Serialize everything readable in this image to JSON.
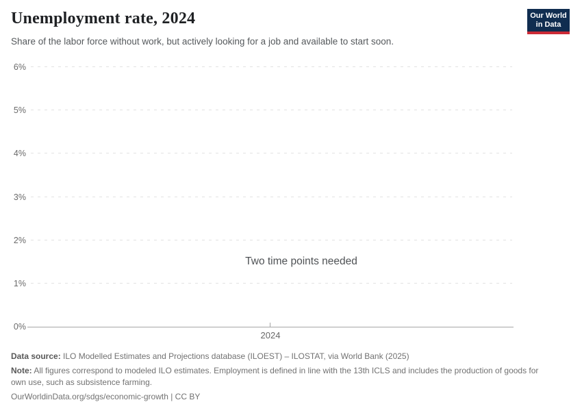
{
  "header": {
    "title": "Unemployment rate, 2024",
    "subtitle": "Share of the labor force without work, but actively looking for a job and available to start soon.",
    "logo": {
      "line1": "Our World",
      "line2": "in Data",
      "bg_color": "#102d50",
      "bar_color": "#cc2a36"
    }
  },
  "chart_data": {
    "type": "line",
    "title": "Unemployment rate, 2024",
    "series": [],
    "x": [],
    "message": "Two time points needed",
    "xlabel": "",
    "ylabel": "",
    "ylim": [
      0,
      6
    ],
    "yticks": [
      0,
      1,
      2,
      3,
      4,
      5,
      6
    ],
    "ytick_labels": [
      "0%",
      "1%",
      "2%",
      "3%",
      "4%",
      "5%",
      "6%"
    ],
    "xticks": [
      2024
    ],
    "xtick_labels": [
      "2024"
    ],
    "grid": "horizontal-dashed",
    "legend": "none",
    "colors": {
      "gridline": "#e2e2e2",
      "axis": "#a5a5a5",
      "tick_label": "#6b6b6b",
      "message_text": "#4f5255"
    }
  },
  "footer": {
    "data_source_label": "Data source:",
    "data_source_text": " ILO Modelled Estimates and Projections database (ILOEST) – ILOSTAT, via World Bank (2025)",
    "note_label": "Note:",
    "note_text": " All figures correspond to modeled ILO estimates. Employment is defined in line with the 13th ICLS and includes the production of goods for own use, such as subsistence farming.",
    "url": "OurWorldinData.org/sdgs/economic-growth",
    "separator": " | ",
    "license": "CC BY"
  }
}
